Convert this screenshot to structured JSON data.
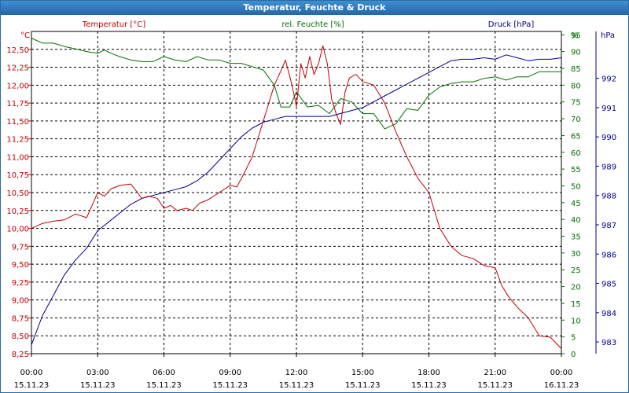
{
  "window": {
    "title": "Temperatur, Feuchte & Druck"
  },
  "chart_data": {
    "type": "line",
    "title": "Temperatur, Feuchte & Druck",
    "x_ticks": [
      {
        "time": "00:00",
        "date": "15.11.23"
      },
      {
        "time": "03:00",
        "date": "15.11.23"
      },
      {
        "time": "06:00",
        "date": "15.11.23"
      },
      {
        "time": "09:00",
        "date": "15.11.23"
      },
      {
        "time": "12:00",
        "date": "15.11.23"
      },
      {
        "time": "15:00",
        "date": "15.11.23"
      },
      {
        "time": "18:00",
        "date": "15.11.23"
      },
      {
        "time": "21:00",
        "date": "15.11.23"
      },
      {
        "time": "00:00",
        "date": "16.11.23"
      }
    ],
    "xlim_hours": [
      0,
      24
    ],
    "grid": true,
    "axes": {
      "temperature": {
        "label": "Temperatur [°C]",
        "unit": "°C",
        "color": "#c00000",
        "side": "left",
        "ylim": [
          8.25,
          12.75
        ],
        "ticks": [
          "8,25",
          "8,50",
          "8,75",
          "9,00",
          "9,25",
          "9,50",
          "9,75",
          "10,00",
          "10,25",
          "10,50",
          "10,75",
          "11,00",
          "11,25",
          "11,50",
          "11,75",
          "12,00",
          "12,25",
          "12,50"
        ]
      },
      "humidity": {
        "label": "rel. Feuchte [%]",
        "unit": "%",
        "color": "#007000",
        "side": "right-inner",
        "ylim": [
          0,
          96
        ],
        "ticks": [
          "0",
          "5",
          "10",
          "15",
          "20",
          "25",
          "30",
          "35",
          "40",
          "45",
          "50",
          "55",
          "60",
          "65",
          "70",
          "75",
          "80",
          "85",
          "90",
          "95"
        ]
      },
      "pressure": {
        "label": "Druck [hPa]",
        "unit": "hPa",
        "color": "#00008b",
        "side": "right-outer",
        "ylim": [
          982.6,
          993.6
        ],
        "ticks": [
          "983",
          "984",
          "985",
          "986",
          "987",
          "988",
          "989",
          "990",
          "991",
          "992"
        ]
      }
    },
    "series": [
      {
        "name": "Temperatur [°C]",
        "axis": "temperature",
        "color": "#c00000",
        "x": [
          0,
          0.5,
          1,
          1.5,
          2,
          2.5,
          3,
          3.3,
          3.6,
          4,
          4.5,
          5,
          5.3,
          5.7,
          6,
          6.3,
          6.6,
          7,
          7.3,
          7.6,
          8,
          8.5,
          9,
          9.3,
          9.6,
          10,
          10.5,
          11,
          11.3,
          11.5,
          11.8,
          12,
          12.2,
          12.4,
          12.6,
          12.8,
          13,
          13.2,
          13.4,
          13.6,
          13.8,
          14,
          14.2,
          14.4,
          14.7,
          15,
          15.5,
          16,
          16.5,
          17,
          17.5,
          18,
          18.5,
          19,
          19.5,
          20,
          20.5,
          21,
          21.3,
          21.6,
          22,
          22.5,
          23,
          23.5,
          24
        ],
        "values": [
          10.0,
          10.07,
          10.1,
          10.12,
          10.2,
          10.15,
          10.5,
          10.45,
          10.55,
          10.6,
          10.62,
          10.42,
          10.45,
          10.42,
          10.28,
          10.32,
          10.25,
          10.28,
          10.25,
          10.35,
          10.4,
          10.5,
          10.6,
          10.58,
          10.75,
          11.0,
          11.5,
          12.0,
          12.2,
          12.35,
          12.0,
          11.7,
          12.3,
          12.1,
          12.4,
          12.15,
          12.3,
          12.55,
          12.3,
          11.8,
          11.6,
          11.45,
          11.9,
          12.1,
          12.15,
          12.05,
          12.0,
          11.75,
          11.35,
          11.0,
          10.7,
          10.5,
          10.0,
          9.75,
          9.62,
          9.58,
          9.48,
          9.45,
          9.2,
          9.05,
          8.9,
          8.75,
          8.5,
          8.48,
          8.32
        ]
      },
      {
        "name": "rel. Feuchte [%]",
        "axis": "humidity",
        "color": "#007000",
        "x": [
          0,
          0.5,
          1,
          1.5,
          2,
          2.5,
          3,
          3.3,
          3.6,
          4,
          4.5,
          5,
          5.5,
          6,
          6.5,
          7,
          7.5,
          8,
          8.5,
          9,
          9.5,
          10,
          10.5,
          11,
          11.3,
          11.7,
          12,
          12.5,
          13,
          13.5,
          14,
          14.5,
          15,
          15.5,
          16,
          16.5,
          17,
          17.5,
          18,
          18.5,
          19,
          19.5,
          20,
          20.5,
          21,
          21.5,
          22,
          22.5,
          23,
          23.5,
          24
        ],
        "values": [
          94,
          92.5,
          92.5,
          91.5,
          90.8,
          90,
          89.5,
          90.5,
          89.5,
          88.5,
          87.5,
          87,
          87,
          88.5,
          87.5,
          87,
          88.5,
          87.5,
          87.5,
          86.5,
          86.5,
          85.5,
          84.5,
          80,
          73.5,
          73.5,
          78,
          73.5,
          74,
          71.5,
          76,
          75,
          71.5,
          71.5,
          67,
          68.5,
          73,
          72.5,
          77,
          79.5,
          80.5,
          81,
          81,
          82,
          82.5,
          81.5,
          82.5,
          82.5,
          84,
          84,
          84
        ]
      },
      {
        "name": "Druck [hPa]",
        "axis": "pressure",
        "color": "#00008b",
        "x": [
          0,
          0.5,
          1,
          1.5,
          2,
          2.5,
          3,
          3.5,
          4,
          4.5,
          5,
          5.5,
          6,
          6.5,
          7,
          7.5,
          8,
          8.5,
          9,
          9.5,
          10,
          10.5,
          11,
          11.5,
          12,
          12.5,
          13,
          13.5,
          14,
          14.5,
          15,
          15.5,
          16,
          16.5,
          17,
          17.5,
          18,
          18.5,
          19,
          19.5,
          20,
          20.5,
          21,
          21.5,
          22,
          22.5,
          23,
          23.5,
          24
        ],
        "values": [
          982.9,
          983.9,
          984.6,
          985.3,
          985.8,
          986.2,
          986.8,
          987.1,
          987.4,
          987.7,
          987.9,
          988.0,
          988.1,
          988.2,
          988.3,
          988.5,
          988.8,
          989.2,
          989.6,
          990.0,
          990.3,
          990.5,
          990.6,
          990.7,
          990.7,
          990.7,
          990.7,
          990.7,
          990.8,
          990.9,
          991.0,
          991.2,
          991.4,
          991.6,
          991.8,
          992.0,
          992.2,
          992.4,
          992.6,
          992.65,
          992.65,
          992.7,
          992.65,
          992.8,
          992.7,
          992.6,
          992.65,
          992.65,
          992.7
        ]
      }
    ]
  }
}
